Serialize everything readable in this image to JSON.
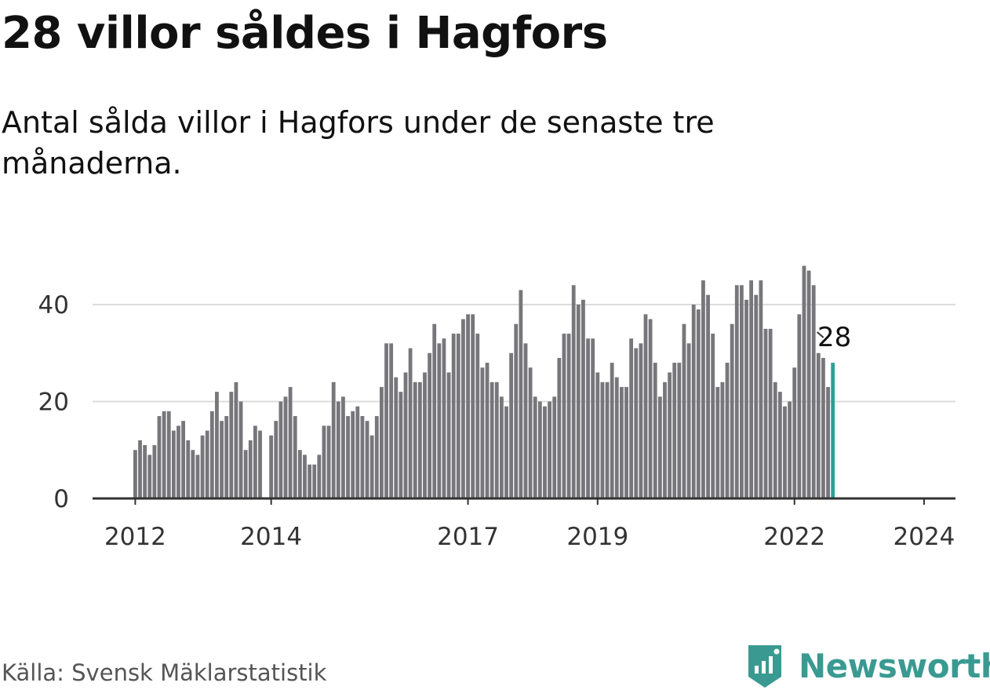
{
  "title": "28 villor såldes i Hagfors",
  "subtitle": "Antal sålda villor i Hagfors under de senaste tre månaderna.",
  "source": "Källa: Svensk Mäklarstatistik",
  "brand": {
    "name": "Newsworthy",
    "icon": "newsworthy-logo-icon"
  },
  "colors": {
    "bar": "#76767b",
    "highlight": "#2aa198",
    "grid": "#dcdcdc",
    "axis": "#333333",
    "brand": "#3a9a91"
  },
  "chart_data": {
    "type": "bar",
    "title": "28 villor såldes i Hagfors",
    "xlabel": "",
    "ylabel": "",
    "ylim": [
      0,
      50
    ],
    "y_ticks": [
      0,
      20,
      40
    ],
    "x_tick_labels": [
      {
        "label": "2012",
        "index": 0
      },
      {
        "label": "2014",
        "index": 27
      },
      {
        "label": "2017",
        "index": 68
      },
      {
        "label": "2019",
        "index": 95
      },
      {
        "label": "2022",
        "index": 136
      },
      {
        "label": "2024",
        "index": 163
      }
    ],
    "first_month": "2012-01",
    "gap_after_index": 26,
    "highlight_label": "28",
    "values": [
      10,
      12,
      11,
      9,
      11,
      17,
      18,
      18,
      14,
      15,
      16,
      12,
      10,
      9,
      13,
      14,
      18,
      22,
      16,
      17,
      22,
      24,
      20,
      10,
      12,
      15,
      14,
      13,
      16,
      20,
      21,
      23,
      17,
      10,
      9,
      7,
      7,
      9,
      15,
      15,
      24,
      20,
      21,
      17,
      18,
      19,
      17,
      16,
      13,
      17,
      23,
      32,
      32,
      25,
      22,
      26,
      31,
      24,
      24,
      26,
      30,
      36,
      32,
      33,
      26,
      34,
      34,
      37,
      38,
      38,
      34,
      27,
      28,
      24,
      24,
      21,
      19,
      30,
      36,
      43,
      32,
      27,
      21,
      20,
      19,
      20,
      21,
      29,
      34,
      34,
      44,
      40,
      41,
      33,
      33,
      26,
      24,
      24,
      28,
      25,
      23,
      23,
      33,
      31,
      32,
      38,
      37,
      28,
      21,
      24,
      26,
      28,
      28,
      36,
      32,
      40,
      39,
      45,
      42,
      34,
      23,
      24,
      28,
      36,
      44,
      44,
      41,
      45,
      42,
      45,
      35,
      35,
      24,
      22,
      19,
      20,
      27,
      38,
      48,
      47,
      44,
      30,
      29,
      23,
      28
    ]
  }
}
